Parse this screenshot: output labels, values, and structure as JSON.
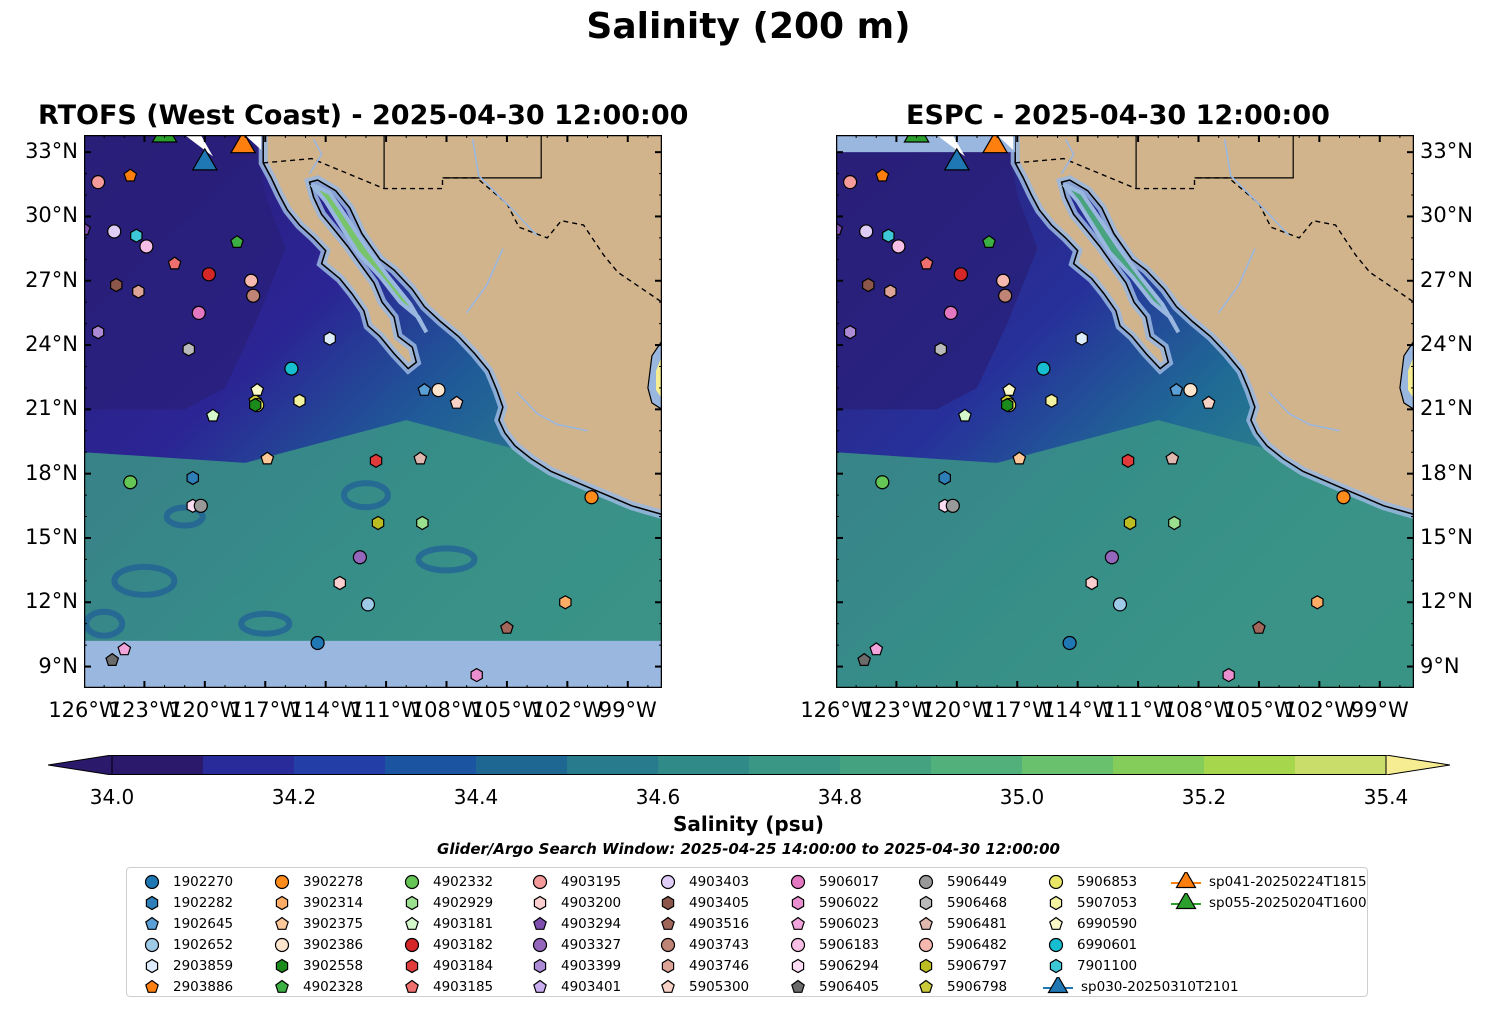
{
  "title": "Salinity (200 m)",
  "panels": [
    {
      "title": "RTOFS (West Coast) - 2025-04-30 12:00:00"
    },
    {
      "title": "ESPC - 2025-04-30 12:00:00"
    }
  ],
  "lat_ticks": [
    "33°N",
    "30°N",
    "27°N",
    "24°N",
    "21°N",
    "18°N",
    "15°N",
    "12°N",
    "9°N"
  ],
  "lon_ticks": [
    "126°W",
    "123°W",
    "120°W",
    "117°W",
    "114°W",
    "111°W",
    "108°W",
    "105°W",
    "102°W",
    "99°W"
  ],
  "colorbar": {
    "label": "Salinity (psu)",
    "ticks": [
      "34.0",
      "34.2",
      "34.4",
      "34.6",
      "34.8",
      "35.0",
      "35.2",
      "35.4"
    ],
    "colors": [
      "#2b1a6b",
      "#2a2b9a",
      "#233fa7",
      "#1b54a0",
      "#1f6793",
      "#287a8d",
      "#308a88",
      "#3b9785",
      "#45a281",
      "#52b07a",
      "#69c06d",
      "#84cd5a",
      "#a6d64c",
      "#c9dd6a",
      "#f6ec92"
    ],
    "min_color": "#2b1a6b",
    "max_color": "#f6ec92"
  },
  "window_note": "Glider/Argo Search Window: 2025-04-25 14:00:00 to 2025-04-30 12:00:00",
  "colors": {
    "land": "#d2b48c",
    "nodata": "#9ab7e0",
    "deep": "#2a1f78",
    "mid": "#1f5c98",
    "teal": "#3b9486",
    "green": "#77c46a"
  },
  "legend": [
    {
      "label": "1902270",
      "color": "#1f77b4",
      "shape": "circle"
    },
    {
      "label": "1902282",
      "color": "#2e7fb8",
      "shape": "hexagon"
    },
    {
      "label": "1902645",
      "color": "#5a9fd6",
      "shape": "pentagon"
    },
    {
      "label": "1902652",
      "color": "#9ecae8",
      "shape": "circle"
    },
    {
      "label": "2903859",
      "color": "#dcecfa",
      "shape": "hexagon"
    },
    {
      "label": "2903886",
      "color": "#ff7f0e",
      "shape": "pentagon"
    },
    {
      "label": "3902278",
      "color": "#ff8c1a",
      "shape": "circle"
    },
    {
      "label": "3902314",
      "color": "#ffad66",
      "shape": "hexagon"
    },
    {
      "label": "3902375",
      "color": "#ffc999",
      "shape": "pentagon"
    },
    {
      "label": "3902386",
      "color": "#fde4cc",
      "shape": "circle"
    },
    {
      "label": "3902558",
      "color": "#1a8a1a",
      "shape": "hexagon"
    },
    {
      "label": "4902328",
      "color": "#3cb043",
      "shape": "pentagon"
    },
    {
      "label": "4902332",
      "color": "#66c655",
      "shape": "circle"
    },
    {
      "label": "4902929",
      "color": "#9be08f",
      "shape": "hexagon"
    },
    {
      "label": "4903181",
      "color": "#d4f7cc",
      "shape": "pentagon"
    },
    {
      "label": "4903182",
      "color": "#d62728",
      "shape": "circle"
    },
    {
      "label": "4903184",
      "color": "#e03a3a",
      "shape": "hexagon"
    },
    {
      "label": "4903185",
      "color": "#f07070",
      "shape": "pentagon"
    },
    {
      "label": "4903195",
      "color": "#f49a9a",
      "shape": "circle"
    },
    {
      "label": "4903200",
      "color": "#fbcfcf",
      "shape": "hexagon"
    },
    {
      "label": "4903294",
      "color": "#7f4fb0",
      "shape": "pentagon"
    },
    {
      "label": "4903327",
      "color": "#9467bd",
      "shape": "circle"
    },
    {
      "label": "4903399",
      "color": "#ad8ad6",
      "shape": "hexagon"
    },
    {
      "label": "4903401",
      "color": "#c8aef0",
      "shape": "pentagon"
    },
    {
      "label": "4903403",
      "color": "#e0cdf7",
      "shape": "circle"
    },
    {
      "label": "4903405",
      "color": "#8c564b",
      "shape": "hexagon"
    },
    {
      "label": "4903516",
      "color": "#a0665a",
      "shape": "pentagon"
    },
    {
      "label": "4903743",
      "color": "#c08477",
      "shape": "circle"
    },
    {
      "label": "4903746",
      "color": "#dca396",
      "shape": "hexagon"
    },
    {
      "label": "5905300",
      "color": "#f7d2c6",
      "shape": "pentagon"
    },
    {
      "label": "5906017",
      "color": "#e377c2",
      "shape": "circle"
    },
    {
      "label": "5906022",
      "color": "#ea8fd0",
      "shape": "hexagon"
    },
    {
      "label": "5906023",
      "color": "#f2a5dc",
      "shape": "pentagon"
    },
    {
      "label": "5906183",
      "color": "#f8bfe6",
      "shape": "circle"
    },
    {
      "label": "5906294",
      "color": "#fcdcf2",
      "shape": "hexagon"
    },
    {
      "label": "5906405",
      "color": "#6b6b6b",
      "shape": "pentagon"
    },
    {
      "label": "5906449",
      "color": "#999999",
      "shape": "circle"
    },
    {
      "label": "5906468",
      "color": "#bababa",
      "shape": "hexagon"
    },
    {
      "label": "5906481",
      "color": "#e0b8b0",
      "shape": "pentagon"
    },
    {
      "label": "5906482",
      "color": "#f7b8b0",
      "shape": "circle"
    },
    {
      "label": "5906797",
      "color": "#bcbd22",
      "shape": "hexagon"
    },
    {
      "label": "5906798",
      "color": "#c9c93a",
      "shape": "pentagon"
    },
    {
      "label": "5906853",
      "color": "#e8e866",
      "shape": "circle"
    },
    {
      "label": "5907053",
      "color": "#f2f2a0",
      "shape": "hexagon"
    },
    {
      "label": "6990590",
      "color": "#fafac8",
      "shape": "pentagon"
    },
    {
      "label": "6990601",
      "color": "#17becf",
      "shape": "circle"
    },
    {
      "label": "7901100",
      "color": "#3cc8d6",
      "shape": "hexagon"
    },
    {
      "label": "sp030-20250310T2101",
      "color": "#1f77b4",
      "shape": "triangle"
    },
    {
      "label": "sp041-20250224T1815",
      "color": "#ff7f0e",
      "shape": "triangle"
    },
    {
      "label": "sp055-20250204T1600",
      "color": "#2ca02c",
      "shape": "triangle"
    }
  ],
  "markers": [
    {
      "id": "2903886",
      "lon": -123.7,
      "lat": 31.9
    },
    {
      "id": "1902645",
      "lon": -109.1,
      "lat": 21.9
    },
    {
      "id": "3902278",
      "lon": -100.8,
      "lat": 16.9
    },
    {
      "id": "3902314",
      "lon": -102.1,
      "lat": 12.0
    },
    {
      "id": "3902375",
      "lon": -116.9,
      "lat": 18.7
    },
    {
      "id": "3902386",
      "lon": -108.4,
      "lat": 21.9
    },
    {
      "id": "4902328",
      "lon": -118.4,
      "lat": 28.8
    },
    {
      "id": "4902332",
      "lon": -123.7,
      "lat": 17.6
    },
    {
      "id": "4902929",
      "lon": -109.2,
      "lat": 15.7
    },
    {
      "id": "4903181",
      "lon": -119.6,
      "lat": 20.7
    },
    {
      "id": "4903182",
      "lon": -119.8,
      "lat": 27.3
    },
    {
      "id": "4903184",
      "lon": -111.5,
      "lat": 18.6
    },
    {
      "id": "4903185",
      "lon": -121.5,
      "lat": 27.8
    },
    {
      "id": "4903195",
      "lon": -125.3,
      "lat": 31.6
    },
    {
      "id": "4903200",
      "lon": -113.3,
      "lat": 12.9
    },
    {
      "id": "4903294",
      "lon": -126.0,
      "lat": 29.4
    },
    {
      "id": "4903327",
      "lon": -112.3,
      "lat": 14.1
    },
    {
      "id": "4903399",
      "lon": -125.3,
      "lat": 24.6
    },
    {
      "id": "4903403",
      "lon": -124.5,
      "lat": 29.3
    },
    {
      "id": "4903405",
      "lon": -124.4,
      "lat": 26.8
    },
    {
      "id": "4903516",
      "lon": -105.0,
      "lat": 10.8
    },
    {
      "id": "4903743",
      "lon": -117.6,
      "lat": 26.3
    },
    {
      "id": "4903746",
      "lon": -123.3,
      "lat": 26.5
    },
    {
      "id": "5905300",
      "lon": -107.5,
      "lat": 21.3
    },
    {
      "id": "5906017",
      "lon": -120.3,
      "lat": 25.5
    },
    {
      "id": "5906022",
      "lon": -106.5,
      "lat": 8.6
    },
    {
      "id": "5906023",
      "lon": -124.0,
      "lat": 9.8
    },
    {
      "id": "5906183",
      "lon": -122.9,
      "lat": 28.6
    },
    {
      "id": "5906294",
      "lon": -120.6,
      "lat": 16.5
    },
    {
      "id": "5906405",
      "lon": -124.6,
      "lat": 9.3
    },
    {
      "id": "5906449",
      "lon": -120.2,
      "lat": 16.5
    },
    {
      "id": "5906468",
      "lon": -120.8,
      "lat": 23.8
    },
    {
      "id": "5906481",
      "lon": -109.3,
      "lat": 18.7
    },
    {
      "id": "5906482",
      "lon": -117.7,
      "lat": 27.0
    },
    {
      "id": "5906797",
      "lon": -111.4,
      "lat": 15.7
    },
    {
      "id": "5906798",
      "lon": -117.5,
      "lat": 21.4
    },
    {
      "id": "5906853",
      "lon": -117.4,
      "lat": 21.2
    },
    {
      "id": "5907053",
      "lon": -115.3,
      "lat": 21.4
    },
    {
      "id": "6990590",
      "lon": -117.4,
      "lat": 21.9
    },
    {
      "id": "6990601",
      "lon": -115.7,
      "lat": 22.9
    },
    {
      "id": "7901100",
      "lon": -123.4,
      "lat": 29.1
    },
    {
      "id": "2903859",
      "lon": -113.8,
      "lat": 24.3
    },
    {
      "id": "1902282",
      "lon": -120.6,
      "lat": 17.8
    },
    {
      "id": "1902270",
      "lon": -114.4,
      "lat": 10.1
    },
    {
      "id": "1902652",
      "lon": -111.9,
      "lat": 11.9
    },
    {
      "id": "3902558",
      "lon": -117.5,
      "lat": 21.2
    }
  ],
  "gliders": [
    {
      "id": "sp055-20250204T1600",
      "lon": -122.0,
      "lat": 33.8
    },
    {
      "id": "sp041-20250224T1815",
      "lon": -118.1,
      "lat": 33.3
    },
    {
      "id": "sp030-20250310T2101",
      "lon": -120.0,
      "lat": 32.5
    }
  ]
}
